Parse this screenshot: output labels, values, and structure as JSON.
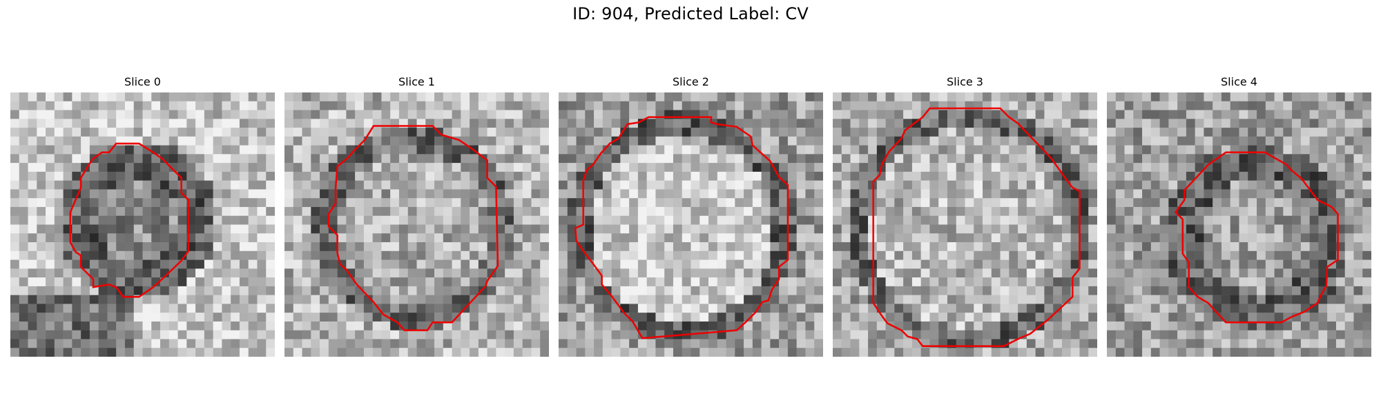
{
  "figure": {
    "title": "ID: 904, Predicted Label: CV"
  },
  "panels": [
    {
      "title": "Slice 0",
      "contour_color": "#ee0000"
    },
    {
      "title": "Slice 1",
      "contour_color": "#ee0000"
    },
    {
      "title": "Slice 2",
      "contour_color": "#ee0000"
    },
    {
      "title": "Slice 3",
      "contour_color": "#ee0000"
    },
    {
      "title": "Slice 4",
      "contour_color": "#ee0000"
    }
  ]
}
